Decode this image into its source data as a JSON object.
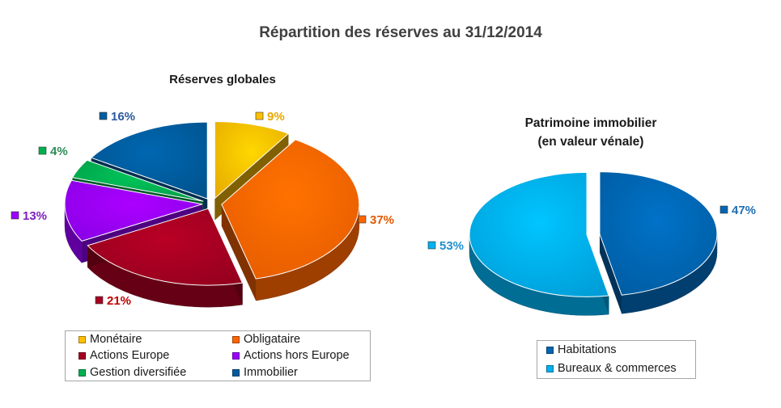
{
  "title": "Répartition des réserves au 31/12/2014",
  "chart_data": [
    {
      "type": "pie",
      "title": "Réserves globales",
      "legend_position": "bottom",
      "categories": [
        "Monétaire",
        "Obligataire",
        "Actions Europe",
        "Actions hors Europe",
        "Gestion diversifiée",
        "Immobilier"
      ],
      "values": [
        9,
        37,
        21,
        13,
        4,
        16
      ],
      "labels": [
        "9%",
        "37%",
        "21%",
        "13%",
        "4%",
        "16%"
      ],
      "colors": [
        "#FFC000",
        "#FF6600",
        "#A50021",
        "#9900FF",
        "#00B050",
        "#005C9E"
      ]
    },
    {
      "type": "pie",
      "title": [
        "Patrimoine immobilier",
        "(en valeur vénale)"
      ],
      "legend_position": "bottom",
      "categories": [
        "Habitations",
        "Bureaux & commerces"
      ],
      "values": [
        47,
        53
      ],
      "labels": [
        "47%",
        "53%"
      ],
      "colors": [
        "#0066B3",
        "#00B0F0"
      ]
    }
  ]
}
